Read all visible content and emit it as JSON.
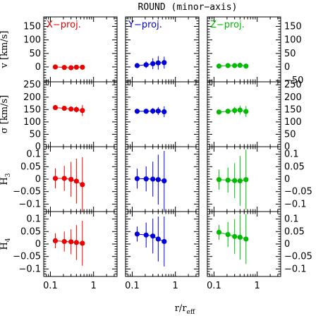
{
  "chart_data": {
    "type": "scatter",
    "title": "ROUND (minor−axis)",
    "xlabel_main": "r/r",
    "xlabel_sub": "eff",
    "xscale": "log",
    "xlim": [
      0.07,
      3.5
    ],
    "x_ticks": [
      0.1,
      1
    ],
    "x_tick_labels": [
      "0.1",
      "1"
    ],
    "columns": [
      {
        "name": "X−proj.",
        "color": "#ee0000"
      },
      {
        "name": "Y−proj.",
        "color": "#0000dd"
      },
      {
        "name": "Z−proj.",
        "color": "#00bb00"
      }
    ],
    "rows": [
      {
        "ylabel": "v [km/s]",
        "ylim": [
          -55,
          185
        ],
        "left_ticks": [
          0,
          50,
          100,
          150
        ],
        "left_tick_labels": [
          "0",
          "50",
          "100",
          "150"
        ],
        "right_ticks": [
          -50,
          0,
          50,
          100,
          150
        ],
        "right_tick_labels": [
          "−50",
          "0",
          "50",
          "100",
          "150"
        ],
        "series": [
          {
            "x": [
              0.13,
              0.21,
              0.3,
              0.4,
              0.55
            ],
            "y": [
              0,
              -2,
              -3,
              -1,
              -1
            ],
            "err": [
              0,
              0,
              0,
              0,
              0
            ]
          },
          {
            "x": [
              0.13,
              0.21,
              0.3,
              0.4,
              0.55
            ],
            "y": [
              5,
              8,
              12,
              15,
              16
            ],
            "err": [
              3,
              12,
              20,
              25,
              22
            ]
          },
          {
            "x": [
              0.13,
              0.21,
              0.3,
              0.4,
              0.55
            ],
            "y": [
              3,
              5,
              5,
              6,
              3
            ],
            "err": [
              3,
              4,
              6,
              8,
              6
            ]
          }
        ]
      },
      {
        "ylabel": "σ [km/s]",
        "ylim": [
          0,
          262
        ],
        "left_ticks": [
          0,
          50,
          100,
          150,
          200,
          250
        ],
        "left_tick_labels": [
          "0",
          "50",
          "100",
          "150",
          "200",
          "250"
        ],
        "right_ticks": [
          0,
          50,
          100,
          150,
          200,
          250
        ],
        "right_tick_labels": [
          "0",
          "50",
          "100",
          "150",
          "200",
          "250"
        ],
        "series": [
          {
            "x": [
              0.13,
              0.21,
              0.3,
              0.4,
              0.55
            ],
            "y": [
              158,
              155,
              152,
              150,
              146
            ],
            "err": [
              5,
              6,
              8,
              12,
              22
            ]
          },
          {
            "x": [
              0.13,
              0.21,
              0.3,
              0.4,
              0.55
            ],
            "y": [
              143,
              143,
              144,
              144,
              141
            ],
            "err": [
              5,
              8,
              12,
              16,
              22
            ]
          },
          {
            "x": [
              0.13,
              0.21,
              0.3,
              0.4,
              0.55
            ],
            "y": [
              140,
              143,
              146,
              148,
              142
            ],
            "err": [
              8,
              10,
              15,
              18,
              22
            ]
          }
        ]
      },
      {
        "ylabel": "H3",
        "ylabel_main": "H",
        "ylabel_sub": "3",
        "ylim": [
          -0.13,
          0.13
        ],
        "left_ticks": [
          -0.1,
          -0.05,
          0,
          0.05,
          0.1
        ],
        "left_tick_labels": [
          "−0.1",
          "−0.05",
          "0",
          "0.05",
          "0.1"
        ],
        "right_ticks": [
          -0.1,
          -0.05,
          0,
          0.05,
          0.1
        ],
        "right_tick_labels": [
          "−0.1",
          "−0.05",
          "0",
          "0.05",
          "0.1"
        ],
        "series": [
          {
            "x": [
              0.13,
              0.21,
              0.3,
              0.4,
              0.55
            ],
            "y": [
              0.003,
              0.003,
              -0.001,
              -0.008,
              -0.022
            ],
            "err": [
              0.04,
              0.05,
              0.07,
              0.09,
              0.11
            ]
          },
          {
            "x": [
              0.13,
              0.21,
              0.3,
              0.4,
              0.55
            ],
            "y": [
              0.002,
              0.001,
              0.0,
              -0.002,
              -0.007
            ],
            "err": [
              0.04,
              0.05,
              0.07,
              0.1,
              0.12
            ]
          },
          {
            "x": [
              0.13,
              0.21,
              0.3,
              0.4,
              0.55
            ],
            "y": [
              -0.002,
              -0.004,
              -0.006,
              -0.007,
              -0.002
            ],
            "err": [
              0.04,
              0.05,
              0.07,
              0.1,
              0.12
            ]
          }
        ]
      },
      {
        "ylabel": "H4",
        "ylabel_main": "H",
        "ylabel_sub": "4",
        "ylim": [
          -0.13,
          0.13
        ],
        "left_ticks": [
          -0.1,
          -0.05,
          0,
          0.05,
          0.1
        ],
        "left_tick_labels": [
          "−0.1",
          "−0.05",
          "0",
          "0.05",
          "0.1"
        ],
        "right_ticks": [
          -0.1,
          -0.05,
          0,
          0.05,
          0.1
        ],
        "right_tick_labels": [
          "−0.1",
          "−0.05",
          "0",
          "0.05",
          "0.1"
        ],
        "series": [
          {
            "x": [
              0.13,
              0.21,
              0.3,
              0.4,
              0.55
            ],
            "y": [
              0.013,
              0.01,
              0.009,
              0.006,
              0.003
            ],
            "err": [
              0.03,
              0.04,
              0.05,
              0.07,
              0.09
            ]
          },
          {
            "x": [
              0.13,
              0.21,
              0.3,
              0.4,
              0.55
            ],
            "y": [
              0.04,
              0.036,
              0.032,
              0.02,
              0.01
            ],
            "err": [
              0.03,
              0.05,
              0.07,
              0.09,
              0.1
            ]
          },
          {
            "x": [
              0.13,
              0.21,
              0.3,
              0.4,
              0.55
            ],
            "y": [
              0.047,
              0.038,
              0.03,
              0.027,
              0.02
            ],
            "err": [
              0.03,
              0.05,
              0.07,
              0.09,
              0.1
            ]
          }
        ]
      }
    ]
  }
}
